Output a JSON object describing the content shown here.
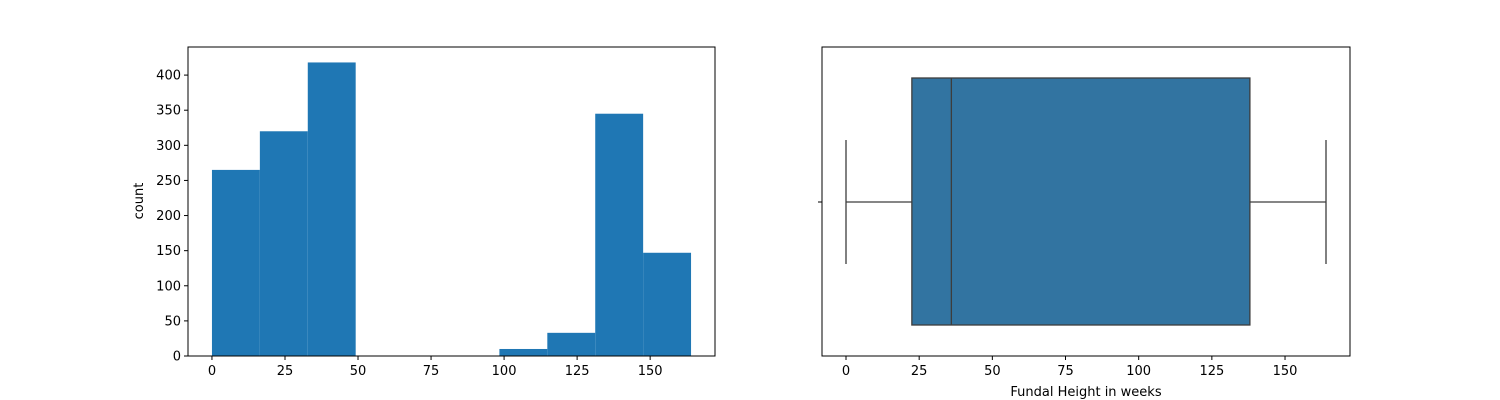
{
  "chart_data": [
    {
      "type": "bar",
      "title": "",
      "xlabel": "",
      "ylabel": "count",
      "xlim": [
        -8.2,
        172.2
      ],
      "ylim": [
        0,
        440
      ],
      "bins": [
        {
          "x0": 0,
          "x1": 16.4,
          "count": 265
        },
        {
          "x0": 16.4,
          "x1": 32.8,
          "count": 320
        },
        {
          "x0": 32.8,
          "x1": 49.2,
          "count": 418
        },
        {
          "x0": 49.2,
          "x1": 65.6,
          "count": 0
        },
        {
          "x0": 65.6,
          "x1": 82.0,
          "count": 0
        },
        {
          "x0": 82.0,
          "x1": 98.4,
          "count": 0
        },
        {
          "x0": 98.4,
          "x1": 114.8,
          "count": 10
        },
        {
          "x0": 114.8,
          "x1": 131.2,
          "count": 33
        },
        {
          "x0": 131.2,
          "x1": 147.6,
          "count": 345
        },
        {
          "x0": 147.6,
          "x1": 164.0,
          "count": 147
        }
      ],
      "x_ticks": [
        0,
        25,
        50,
        75,
        100,
        125,
        150
      ],
      "y_ticks": [
        0,
        50,
        100,
        150,
        200,
        250,
        300,
        350,
        400
      ],
      "bar_color": "#1f77b4",
      "grid": false
    },
    {
      "type": "box",
      "title": "",
      "xlabel": "Fundal Height in weeks",
      "ylabel": "",
      "xlim": [
        -8.2,
        172.2
      ],
      "stats": {
        "min": 0,
        "q1": 22.5,
        "median": 36,
        "q3": 138,
        "max": 164
      },
      "x_ticks": [
        0,
        25,
        50,
        75,
        100,
        125,
        150
      ],
      "box_color": "#3274a1",
      "line_color": "#3d3d3d",
      "grid": false
    }
  ]
}
